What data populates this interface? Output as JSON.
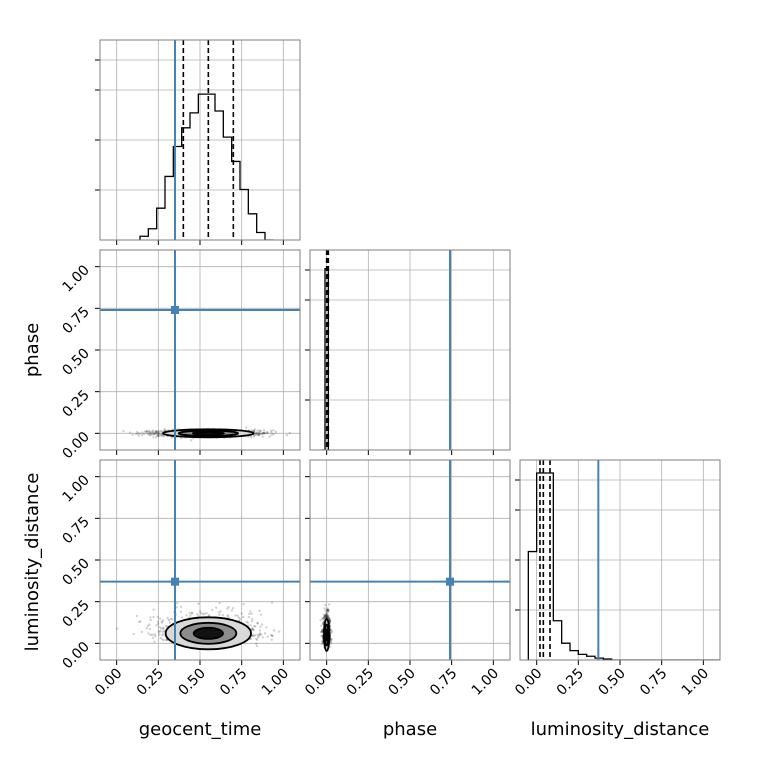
{
  "chart_data": {
    "type": "corner",
    "parameters": [
      "geocent_time",
      "phase",
      "luminosity_distance"
    ],
    "axis_ticks": [
      "0.00",
      "0.25",
      "0.50",
      "0.75",
      "1.00"
    ],
    "axis_range": [
      -0.1,
      1.1
    ],
    "grid": true,
    "colors": {
      "truth": "#4682b4",
      "hist": "#000000",
      "contour": "#000000",
      "points": "#000000"
    },
    "truths": {
      "geocent_time": 0.35,
      "phase": 0.74,
      "luminosity_distance": 0.37
    },
    "quantiles": {
      "geocent_time": [
        0.4,
        0.55,
        0.7
      ],
      "phase": [
        0.0,
        0.005,
        0.01
      ],
      "luminosity_distance": [
        0.02,
        0.04,
        0.08
      ]
    },
    "histograms": {
      "geocent_time": {
        "bins": [
          0.14,
          0.19,
          0.24,
          0.29,
          0.34,
          0.39,
          0.44,
          0.49,
          0.54,
          0.59,
          0.64,
          0.69,
          0.74,
          0.79,
          0.84,
          0.89,
          0.94
        ],
        "counts": [
          0.02,
          0.06,
          0.17,
          0.34,
          0.5,
          0.6,
          0.68,
          0.78,
          0.78,
          0.69,
          0.55,
          0.42,
          0.27,
          0.14,
          0.04,
          0.0
        ]
      },
      "phase": {
        "bins": [
          -0.03,
          -0.01,
          0.0,
          0.01,
          0.02
        ],
        "counts": [
          0.0,
          0.97,
          0.97,
          0.0
        ]
      },
      "luminosity_distance": {
        "bins": [
          -0.05,
          0.0,
          0.05,
          0.1,
          0.15,
          0.2,
          0.25,
          0.3,
          0.35,
          0.4,
          0.45,
          1.1
        ],
        "counts": [
          0.58,
          1.0,
          1.0,
          0.21,
          0.09,
          0.05,
          0.03,
          0.02,
          0.01,
          0.005,
          0.0
        ]
      }
    },
    "density_2d": {
      "geocent_time_phase": {
        "center": [
          0.55,
          0.0
        ],
        "spread": [
          0.17,
          0.01
        ]
      },
      "geocent_time_luminosity_distance": {
        "center": [
          0.55,
          0.06
        ],
        "spread": [
          0.16,
          0.06
        ]
      },
      "phase_luminosity_distance": {
        "center": [
          0.0,
          0.05
        ],
        "spread": [
          0.01,
          0.06
        ]
      }
    }
  }
}
